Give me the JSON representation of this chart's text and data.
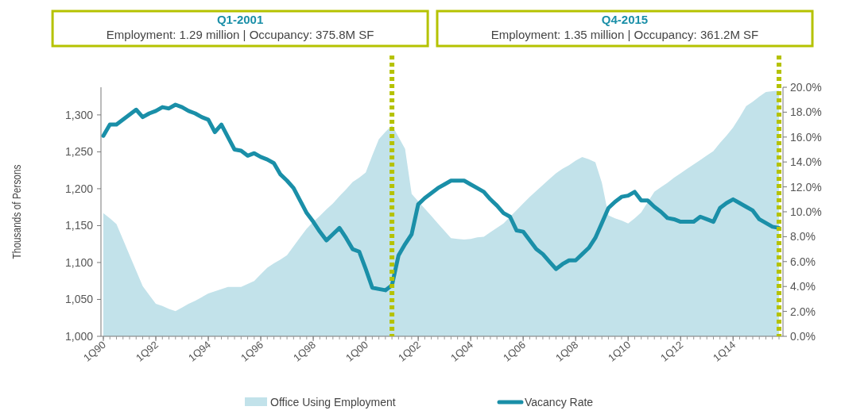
{
  "chart_data": {
    "type": "area",
    "ylabel": "Thousands of Persons",
    "categories": [
      "1Q90",
      null,
      null,
      null,
      null,
      null,
      null,
      null,
      "1Q92",
      null,
      null,
      null,
      null,
      null,
      null,
      null,
      "1Q94",
      null,
      null,
      null,
      null,
      null,
      null,
      null,
      "1Q96",
      null,
      null,
      null,
      null,
      null,
      null,
      null,
      "1Q98",
      null,
      null,
      null,
      null,
      null,
      null,
      null,
      "1Q00",
      null,
      null,
      null,
      null,
      null,
      null,
      null,
      "1Q02",
      null,
      null,
      null,
      null,
      null,
      null,
      null,
      "1Q04",
      null,
      null,
      null,
      null,
      null,
      null,
      null,
      "1Q06",
      null,
      null,
      null,
      null,
      null,
      null,
      null,
      "1Q08",
      null,
      null,
      null,
      null,
      null,
      null,
      null,
      "1Q10",
      null,
      null,
      null,
      null,
      null,
      null,
      null,
      "1Q12",
      null,
      null,
      null,
      null,
      null,
      null,
      null,
      "1Q14",
      null,
      null,
      null,
      null,
      null,
      null,
      null
    ],
    "ylim": [
      1000,
      1337.5
    ],
    "yticks": [
      {
        "value": 1000,
        "label": "1,000"
      },
      {
        "value": 1050,
        "label": "1,050"
      },
      {
        "value": 1100,
        "label": "1,100"
      },
      {
        "value": 1150,
        "label": "1,150"
      },
      {
        "value": 1200,
        "label": "1,200"
      },
      {
        "value": 1250,
        "label": "1,250"
      },
      {
        "value": 1300,
        "label": "1,300"
      }
    ],
    "y2lim": [
      0,
      20
    ],
    "y2ticks": [
      {
        "value": 0,
        "label": "0.0%"
      },
      {
        "value": 2,
        "label": "2.0%"
      },
      {
        "value": 4,
        "label": "4.0%"
      },
      {
        "value": 6,
        "label": "6.0%"
      },
      {
        "value": 8,
        "label": "8.0%"
      },
      {
        "value": 10,
        "label": "10.0%"
      },
      {
        "value": 12,
        "label": "12.0%"
      },
      {
        "value": 14,
        "label": "14.0%"
      },
      {
        "value": 16,
        "label": "16.0%"
      },
      {
        "value": 18,
        "label": "18.0%"
      },
      {
        "value": 20,
        "label": "20.0%"
      }
    ],
    "legend": "bottom",
    "series": [
      {
        "name": "Office Using Employment",
        "color": "#c2e2ea",
        "values": [
          1167,
          1160,
          1152,
          1131,
          1110,
          1089,
          1068,
          1056,
          1044,
          1041,
          1037,
          1034,
          1039,
          1044,
          1048,
          1053,
          1058,
          1061,
          1064,
          1067,
          1067,
          1067,
          1071,
          1075,
          1084,
          1093,
          1099,
          1104,
          1110,
          1122,
          1134,
          1146,
          1155,
          1163,
          1172,
          1180,
          1190,
          1199,
          1209,
          1215,
          1222,
          1245,
          1267,
          1277,
          1286,
          1270,
          1254,
          1193,
          1183,
          1173,
          1163,
          1153,
          1143,
          1133,
          1132,
          1131,
          1132,
          1134,
          1135,
          1141,
          1147,
          1153,
          1162,
          1171,
          1180,
          1189,
          1197,
          1205,
          1213,
          1221,
          1227,
          1232,
          1238,
          1243,
          1240,
          1236,
          1208,
          1164,
          1160,
          1157,
          1153,
          1160,
          1168,
          1182,
          1196,
          1202,
          1208,
          1215,
          1221,
          1227,
          1233,
          1239,
          1245,
          1251,
          1262,
          1272,
          1283,
          1297,
          1312,
          1318,
          1325,
          1331,
          1332,
          1333
        ]
      },
      {
        "name": "Vacancy Rate",
        "type": "line",
        "axis": "y2",
        "color": "#1a8fa8",
        "values": [
          16.1,
          17.0,
          17.0,
          17.4,
          17.8,
          18.2,
          17.6,
          17.9,
          18.1,
          18.4,
          18.3,
          18.6,
          18.4,
          18.1,
          17.9,
          17.6,
          17.4,
          16.4,
          17.0,
          16.0,
          15.0,
          14.9,
          14.5,
          14.7,
          14.4,
          14.2,
          13.9,
          13.0,
          12.5,
          11.9,
          10.9,
          9.9,
          9.2,
          8.4,
          7.7,
          8.2,
          8.7,
          7.9,
          7.0,
          6.8,
          5.4,
          3.9,
          3.8,
          3.7,
          4.1,
          6.5,
          7.4,
          8.2,
          10.6,
          11.1,
          11.5,
          11.9,
          12.2,
          12.5,
          12.5,
          12.5,
          12.2,
          11.9,
          11.6,
          11.0,
          10.5,
          9.9,
          9.6,
          8.5,
          8.4,
          7.7,
          7.0,
          6.6,
          6.0,
          5.4,
          5.8,
          6.1,
          6.1,
          6.6,
          7.1,
          7.9,
          9.1,
          10.3,
          10.8,
          11.2,
          11.3,
          11.6,
          10.9,
          10.9,
          10.4,
          10.0,
          9.5,
          9.4,
          9.2,
          9.2,
          9.2,
          9.6,
          9.4,
          9.2,
          10.3,
          10.7,
          11.0,
          10.7,
          10.4,
          10.1,
          9.4,
          9.1,
          8.8,
          8.7
        ]
      }
    ],
    "annotations": [
      "Q1-2001",
      "Employment: 1.29 million | Occupancy: 375.8M SF",
      "Q4-2015",
      "Employment: 1.35 million | Occupancy: 361.2M SF"
    ]
  }
}
